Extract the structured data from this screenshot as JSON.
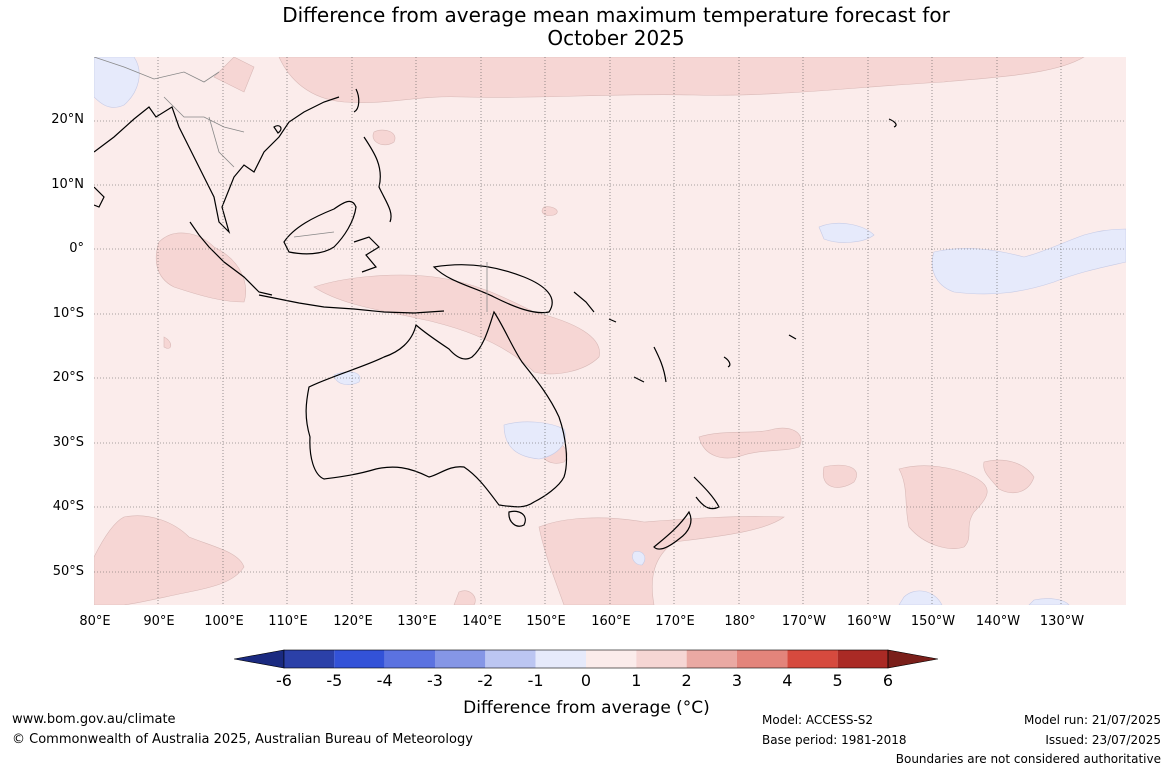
{
  "title_line1": "Difference from average mean maximum temperature forecast for",
  "title_line2": "October 2025",
  "lat_labels": [
    "20°N",
    "10°N",
    "0°",
    "10°S",
    "20°S",
    "30°S",
    "40°S",
    "50°S"
  ],
  "lon_labels": [
    "80°E",
    "90°E",
    "100°E",
    "110°E",
    "120°E",
    "130°E",
    "140°E",
    "150°E",
    "160°E",
    "170°E",
    "180°",
    "170°W",
    "160°W",
    "150°W",
    "140°W",
    "130°W"
  ],
  "colorbar": {
    "ticks": [
      "-6",
      "-5",
      "-4",
      "-3",
      "-2",
      "-1",
      "0",
      "1",
      "2",
      "3",
      "4",
      "5",
      "6"
    ],
    "colors": [
      "#1a2a80",
      "#2b40a8",
      "#3352d8",
      "#5b72e0",
      "#8596e6",
      "#bcc6f2",
      "#e6eafb",
      "#fbeceb",
      "#f6d6d4",
      "#eaa9a3",
      "#e3847b",
      "#d64a3e",
      "#aa2a25",
      "#7a1f1a"
    ],
    "label": "Difference from average (°C)"
  },
  "footer": {
    "url": "www.bom.gov.au/climate",
    "copyright": "© Commonwealth of Australia 2025, Australian Bureau of Meteorology",
    "model": "Model: ACCESS-S2",
    "base_period": "Base period: 1981-2018",
    "model_run": "Model run: 21/07/2025",
    "issued": "Issued: 23/07/2025",
    "boundaries_note": "Boundaries are not considered authoritative"
  }
}
